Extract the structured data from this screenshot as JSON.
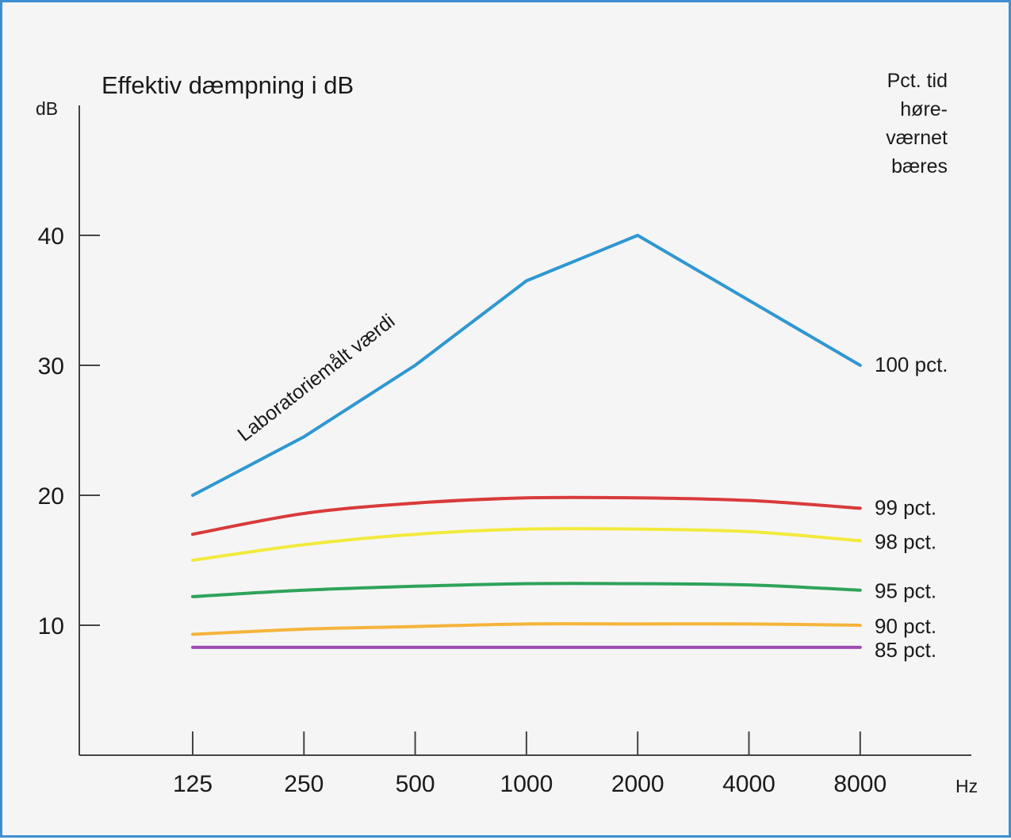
{
  "chart_data": {
    "type": "line",
    "title": "Effektiv dæmpning i dB",
    "ylabel": "dB",
    "xlabel": "Hz",
    "categories": [
      "125",
      "250",
      "500",
      "1000",
      "2000",
      "4000",
      "8000"
    ],
    "yticks": [
      10,
      20,
      30,
      40
    ],
    "ylim": [
      0,
      50
    ],
    "legend_title": [
      "Pct. tid",
      "høre-",
      "værnet",
      "bæres"
    ],
    "annotation": "Laboratoriemålt værdi",
    "grid": false,
    "series": [
      {
        "name": "100 pct.",
        "color": "#2f97d1",
        "values": [
          20,
          24.5,
          30,
          36.5,
          40,
          35,
          30
        ],
        "shape": "linear"
      },
      {
        "name": "99 pct.",
        "color": "#d93a3a",
        "values": [
          17,
          18.6,
          19.4,
          19.8,
          19.8,
          19.6,
          19
        ],
        "shape": "smooth"
      },
      {
        "name": "98 pct.",
        "color": "#f2ea3c",
        "values": [
          15,
          16.2,
          17,
          17.4,
          17.4,
          17.2,
          16.5
        ],
        "shape": "smooth"
      },
      {
        "name": "95 pct.",
        "color": "#2ea35a",
        "values": [
          12.2,
          12.7,
          13,
          13.2,
          13.2,
          13.1,
          12.7
        ],
        "shape": "smooth"
      },
      {
        "name": "90 pct.",
        "color": "#f5b43a",
        "values": [
          9.3,
          9.7,
          9.9,
          10.1,
          10.1,
          10.1,
          10
        ],
        "shape": "smooth"
      },
      {
        "name": "85 pct.",
        "color": "#a04ab3",
        "values": [
          8.3,
          8.3,
          8.3,
          8.3,
          8.3,
          8.3,
          8.3
        ],
        "shape": "smooth"
      }
    ]
  }
}
